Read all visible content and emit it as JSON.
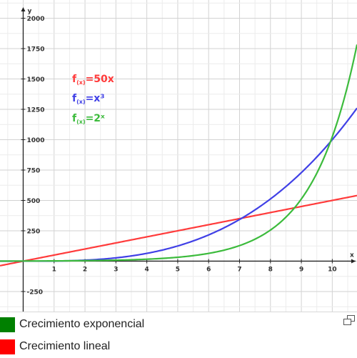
{
  "chart_data": {
    "type": "line",
    "title": "",
    "xlabel": "x",
    "ylabel": "y",
    "xlim": [
      -0.75,
      10.8
    ],
    "ylim": [
      -415,
      2150
    ],
    "grid": true,
    "x_ticks": [
      1,
      2,
      3,
      4,
      5,
      6,
      7,
      8,
      9,
      10
    ],
    "y_ticks": [
      -250,
      250,
      500,
      750,
      1000,
      1250,
      1500,
      1750,
      2000
    ],
    "series": [
      {
        "name": "f(x)=50x",
        "color": "#ff3b3b",
        "x": [
          -0.75,
          0,
          1,
          2,
          3,
          4,
          5,
          6,
          7,
          8,
          9,
          10,
          10.8
        ],
        "y": [
          -37.5,
          0,
          50,
          100,
          150,
          200,
          250,
          300,
          350,
          400,
          450,
          500,
          540
        ]
      },
      {
        "name": "f(x)=x³",
        "color": "#4040e6",
        "x": [
          -0.75,
          0,
          1,
          2,
          3,
          4,
          5,
          6,
          7,
          8,
          9,
          10,
          10.8
        ],
        "y": [
          -0.42,
          0,
          1,
          8,
          27,
          64,
          125,
          216,
          343,
          512,
          729,
          1000,
          1259.7
        ]
      },
      {
        "name": "f(x)=2ˣ",
        "color": "#3cbb3c",
        "x": [
          -0.75,
          0,
          1,
          2,
          3,
          4,
          5,
          6,
          7,
          8,
          9,
          10,
          10.5,
          10.8
        ],
        "y": [
          0.59,
          1,
          2,
          4,
          8,
          16,
          32,
          64,
          128,
          256,
          512,
          1024,
          1448.2,
          1782.9
        ]
      }
    ]
  },
  "formulas": [
    {
      "f": "f",
      "sub": "(x)",
      "rest": "=50x",
      "color": "#ff3b3b"
    },
    {
      "f": "f",
      "sub": "(x)",
      "rest": "=x³",
      "color": "#4040e6"
    },
    {
      "f": "f",
      "sub": "(x)",
      "rest": "=2ˣ",
      "color": "#3cbb3c"
    }
  ],
  "legend": {
    "items": [
      {
        "label": "Crecimiento exponencial",
        "color": "#008000"
      },
      {
        "label": "Crecimiento lineal",
        "color": "#ff0000"
      }
    ]
  }
}
